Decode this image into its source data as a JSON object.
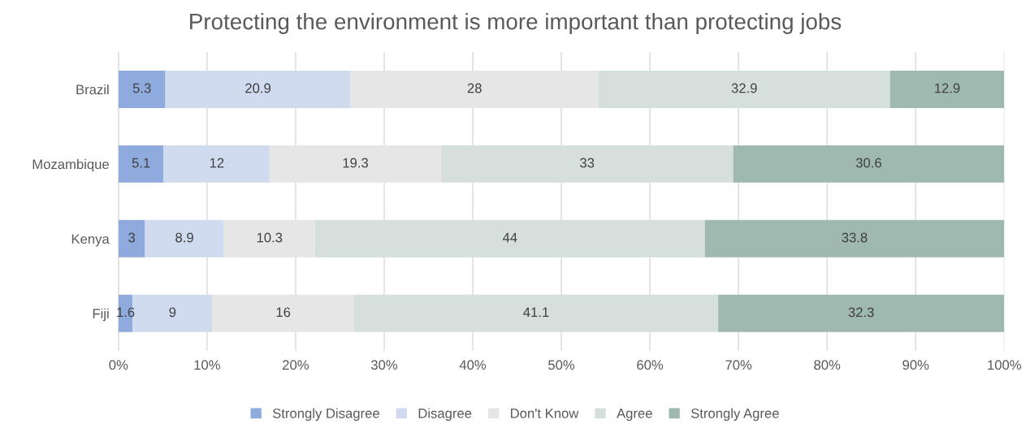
{
  "chart_data": {
    "type": "bar",
    "orientation": "horizontal",
    "stacked": true,
    "title": "Protecting the environment is more important than protecting jobs",
    "categories": [
      "Brazil",
      "Mozambique",
      "Kenya",
      "Fiji"
    ],
    "series": [
      {
        "name": "Strongly Disagree",
        "color": "#8faadc",
        "values": [
          5.3,
          5.1,
          3,
          1.6
        ]
      },
      {
        "name": "Disagree",
        "color": "#d0dbf0",
        "values": [
          20.9,
          12,
          8.9,
          9
        ]
      },
      {
        "name": "Don't Know",
        "color": "#e6e6e6",
        "values": [
          28,
          19.3,
          10.3,
          16
        ]
      },
      {
        "name": "Agree",
        "color": "#d5e0dc",
        "values": [
          32.9,
          33,
          44,
          41.1
        ]
      },
      {
        "name": "Strongly Agree",
        "color": "#9fb9b0",
        "values": [
          12.9,
          30.6,
          33.8,
          32.3
        ]
      }
    ],
    "xlim": [
      0,
      100
    ],
    "xticks": [
      {
        "value": 0,
        "label": "0%"
      },
      {
        "value": 10,
        "label": "10%"
      },
      {
        "value": 20,
        "label": "20%"
      },
      {
        "value": 30,
        "label": "30%"
      },
      {
        "value": 40,
        "label": "40%"
      },
      {
        "value": 50,
        "label": "50%"
      },
      {
        "value": 60,
        "label": "60%"
      },
      {
        "value": 70,
        "label": "70%"
      },
      {
        "value": 80,
        "label": "80%"
      },
      {
        "value": 90,
        "label": "90%"
      },
      {
        "value": 100,
        "label": "100%"
      }
    ],
    "grid": "x",
    "legend": "bottom",
    "data_labels": true
  }
}
